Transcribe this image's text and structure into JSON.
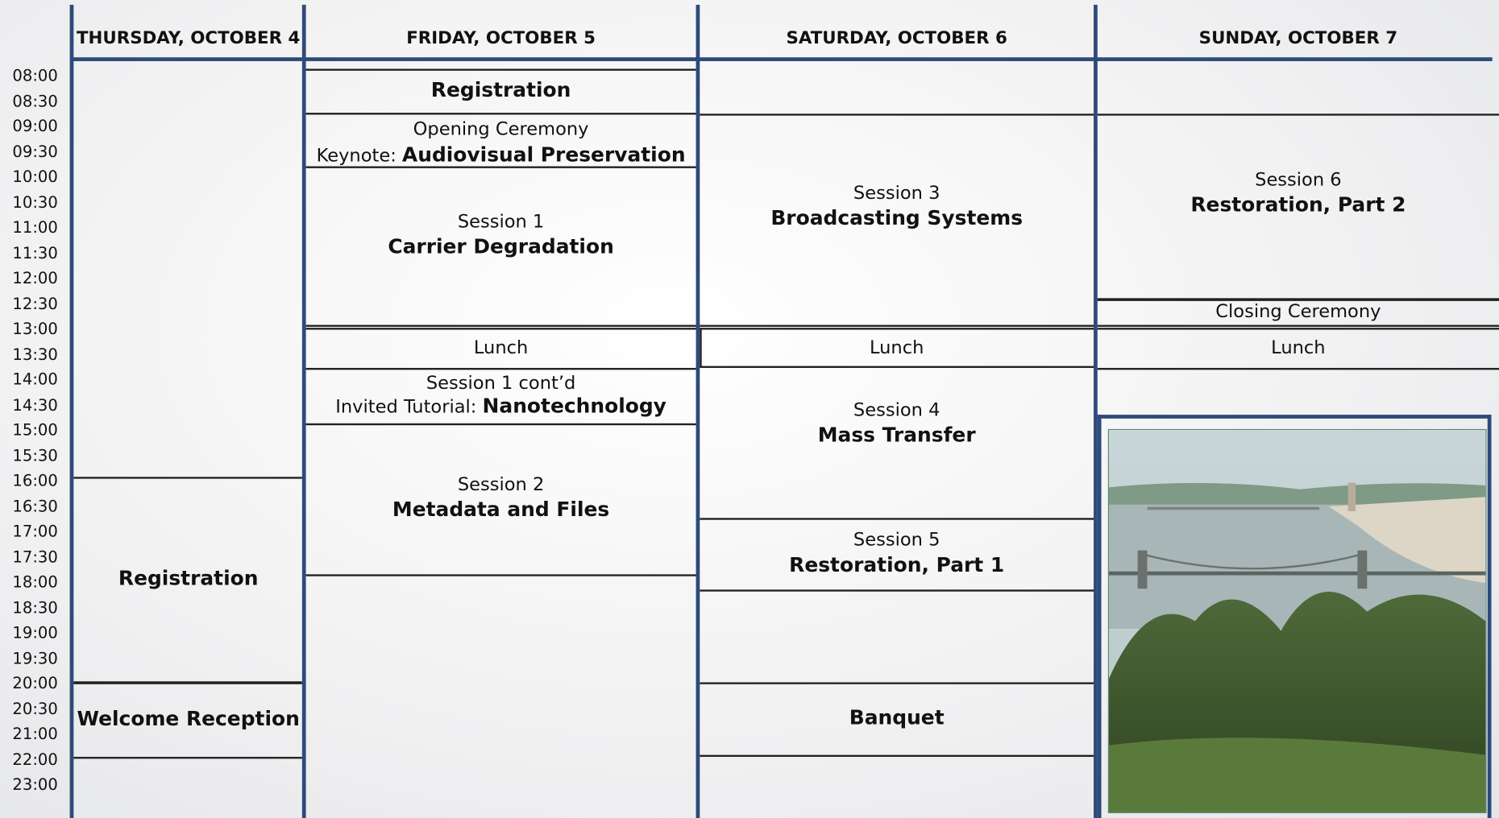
{
  "times": [
    "08:00",
    "08:30",
    "09:00",
    "09:30",
    "10:00",
    "10:30",
    "11:00",
    "11:30",
    "12:00",
    "12:30",
    "13:00",
    "13:30",
    "14:00",
    "14:30",
    "15:00",
    "15:30",
    "16:00",
    "16:30",
    "17:00",
    "17:30",
    "18:00",
    "18:30",
    "19:00",
    "19:30",
    "20:00",
    "20:30",
    "21:00",
    "22:00",
    "23:00"
  ],
  "days": [
    {
      "title": "THURSDAY, OCTOBER 4",
      "events": [
        {
          "title": "Registration"
        },
        {
          "title": "Welcome Reception"
        }
      ]
    },
    {
      "title": "FRIDAY, OCTOBER 5",
      "events": [
        {
          "title": "Registration"
        },
        {
          "label": "Opening Ceremony",
          "prefix": "Keynote:",
          "title": "Audiovisual Preservation"
        },
        {
          "label": "Session 1",
          "title": "Carrier Degradation"
        },
        {
          "label": "Lunch"
        },
        {
          "label": "Session 1 cont’d",
          "prefix": "Invited Tutorial:",
          "title": "Nanotechnology"
        },
        {
          "label": "Session 2",
          "title": "Metadata and Files"
        }
      ]
    },
    {
      "title": "SATURDAY, OCTOBER 6",
      "events": [
        {
          "label": "Session 3",
          "title": "Broadcasting Systems"
        },
        {
          "label": "Lunch"
        },
        {
          "label": "Session 4",
          "title": "Mass Transfer"
        },
        {
          "label": "Session 5",
          "title": "Restoration, Part 1"
        },
        {
          "title": "Banquet"
        }
      ]
    },
    {
      "title": "SUNDAY, OCTOBER 7",
      "events": [
        {
          "label": "Session 6",
          "title": "Restoration, Part 2"
        },
        {
          "label": "Closing Ceremony"
        },
        {
          "label": "Lunch"
        }
      ]
    }
  ]
}
